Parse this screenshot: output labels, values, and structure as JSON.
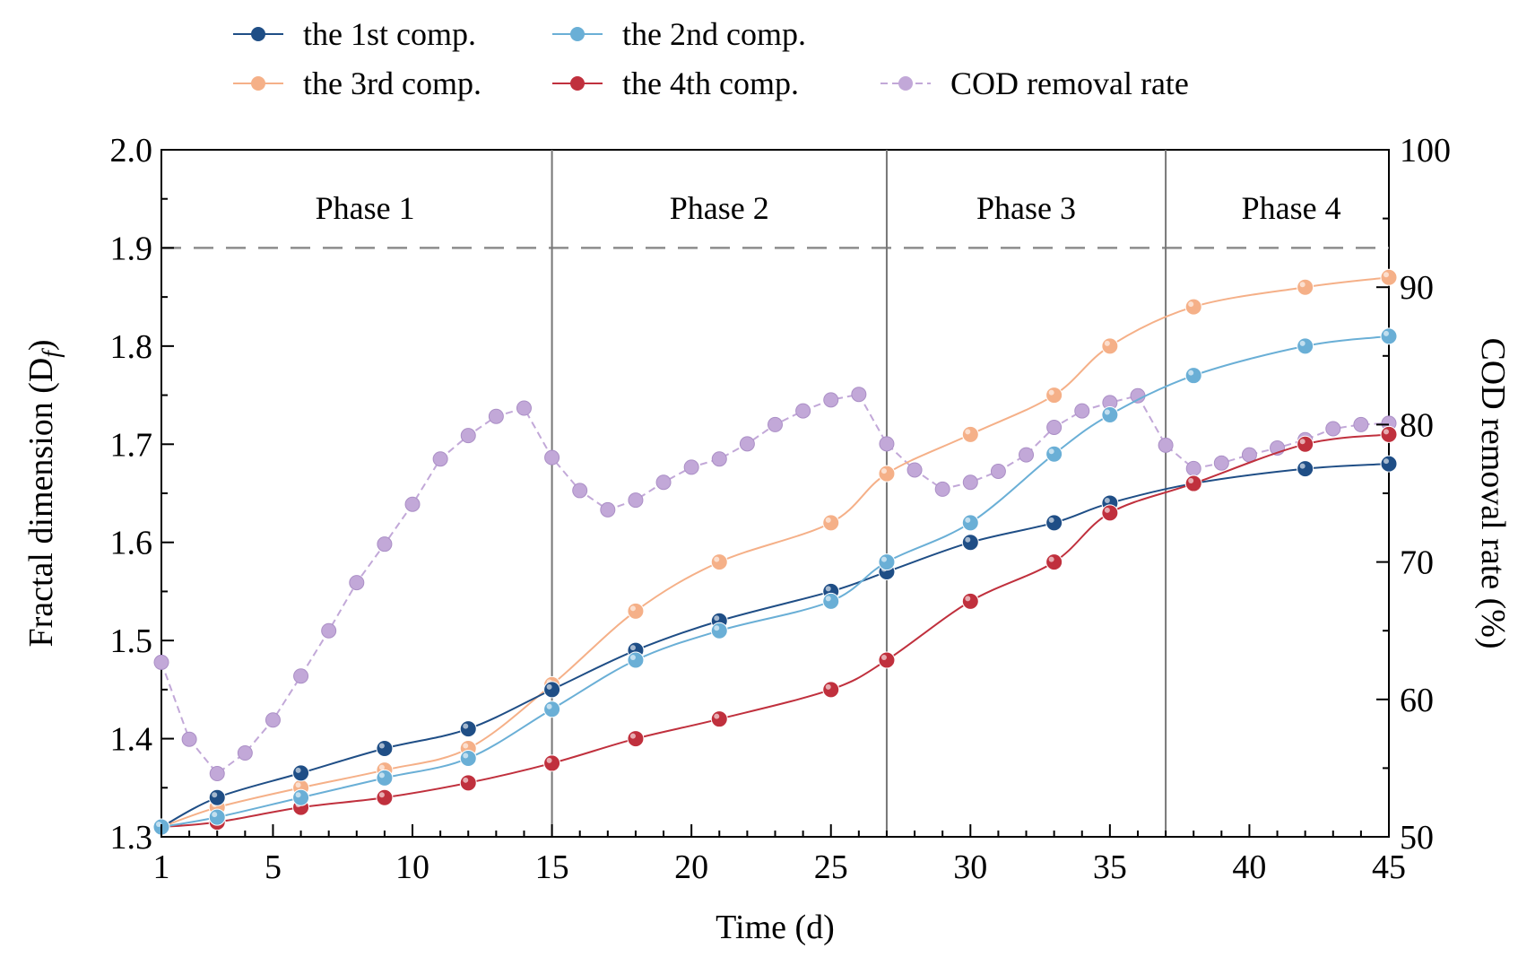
{
  "chart_data": {
    "type": "line",
    "title": "",
    "xlabel": "Time (d)",
    "ylabel": "Fractal dimension (D",
    "ylabel_sub": "f",
    "ylabel_close": ")",
    "y2label": "COD removal rate (%)",
    "xlim": [
      1,
      45
    ],
    "ylim": [
      1.3,
      2.0
    ],
    "y2lim": [
      50,
      100
    ],
    "x_ticks": [
      1,
      5,
      10,
      15,
      20,
      25,
      30,
      35,
      40,
      45
    ],
    "y_ticks": [
      1.3,
      1.4,
      1.5,
      1.6,
      1.7,
      1.8,
      1.9,
      2.0
    ],
    "y2_ticks": [
      50,
      60,
      70,
      80,
      90,
      100
    ],
    "x_tick_labels": [
      "1",
      "5",
      "10",
      "15",
      "20",
      "25",
      "30",
      "35",
      "40",
      "45"
    ],
    "y_tick_labels": [
      "1.3",
      "1.4",
      "1.5",
      "1.6",
      "1.7",
      "1.8",
      "1.9",
      "2.0"
    ],
    "y2_tick_labels": [
      "50",
      "60",
      "70",
      "80",
      "90",
      "100"
    ],
    "reference_line": {
      "y": 1.9,
      "style": "dashed",
      "color": "#8c8c8c"
    },
    "phase_boundaries": [
      15,
      27,
      37
    ],
    "phases": [
      {
        "label": "Phase 1",
        "center": 8.3
      },
      {
        "label": "Phase 2",
        "center": 21.0
      },
      {
        "label": "Phase 3",
        "center": 32.0
      },
      {
        "label": "Phase 4",
        "center": 41.5
      }
    ],
    "legend_position": "top",
    "grid": false,
    "series": [
      {
        "name": "the 1st comp.",
        "axis": "left",
        "color": "#1f4e86",
        "line": "solid",
        "x": [
          1,
          3,
          6,
          9,
          12,
          15,
          18,
          21,
          25,
          27,
          30,
          33,
          35,
          38,
          42,
          45
        ],
        "y": [
          1.31,
          1.34,
          1.365,
          1.39,
          1.41,
          1.45,
          1.49,
          1.52,
          1.55,
          1.57,
          1.6,
          1.62,
          1.64,
          1.66,
          1.675,
          1.68
        ]
      },
      {
        "name": "the 2nd comp.",
        "axis": "left",
        "color": "#6aafd6",
        "line": "solid",
        "x": [
          1,
          3,
          6,
          9,
          12,
          15,
          18,
          21,
          25,
          27,
          30,
          33,
          35,
          38,
          42,
          45
        ],
        "y": [
          1.31,
          1.32,
          1.34,
          1.36,
          1.38,
          1.43,
          1.48,
          1.51,
          1.54,
          1.58,
          1.62,
          1.69,
          1.73,
          1.77,
          1.8,
          1.81
        ]
      },
      {
        "name": "the 3rd comp.",
        "axis": "left",
        "color": "#f5b088",
        "line": "solid",
        "x": [
          1,
          3,
          6,
          9,
          12,
          15,
          18,
          21,
          25,
          27,
          30,
          33,
          35,
          38,
          42,
          45
        ],
        "y": [
          1.31,
          1.33,
          1.35,
          1.368,
          1.39,
          1.455,
          1.53,
          1.58,
          1.62,
          1.67,
          1.71,
          1.75,
          1.8,
          1.84,
          1.86,
          1.87
        ]
      },
      {
        "name": "the 4th comp.",
        "axis": "left",
        "color": "#c0303d",
        "line": "solid",
        "x": [
          1,
          3,
          6,
          9,
          12,
          15,
          18,
          21,
          25,
          27,
          30,
          33,
          35,
          38,
          42,
          45
        ],
        "y": [
          1.31,
          1.315,
          1.33,
          1.34,
          1.355,
          1.375,
          1.4,
          1.42,
          1.45,
          1.48,
          1.54,
          1.58,
          1.63,
          1.66,
          1.7,
          1.71
        ]
      },
      {
        "name": "COD removal rate",
        "axis": "right",
        "color": "#c2a8d8",
        "line": "dashed",
        "x": [
          1,
          2,
          3,
          4,
          5,
          6,
          7,
          8,
          9,
          10,
          11,
          12,
          13,
          14,
          15,
          16,
          17,
          18,
          19,
          20,
          21,
          22,
          23,
          24,
          25,
          26,
          27,
          28,
          29,
          30,
          31,
          32,
          33,
          34,
          35,
          36,
          37,
          38,
          39,
          40,
          41,
          42,
          43,
          44,
          45
        ],
        "y": [
          62.7,
          57.1,
          54.6,
          56.1,
          58.5,
          61.7,
          65.0,
          68.5,
          71.3,
          74.2,
          77.5,
          79.2,
          80.6,
          81.2,
          77.6,
          75.2,
          73.8,
          74.5,
          75.8,
          76.9,
          77.5,
          78.6,
          80.0,
          81.0,
          81.8,
          82.2,
          78.6,
          76.7,
          75.3,
          75.8,
          76.6,
          77.8,
          79.8,
          81.0,
          81.6,
          82.1,
          78.5,
          76.8,
          77.2,
          77.8,
          78.3,
          78.9,
          79.7,
          80.0,
          80.1
        ]
      }
    ]
  }
}
